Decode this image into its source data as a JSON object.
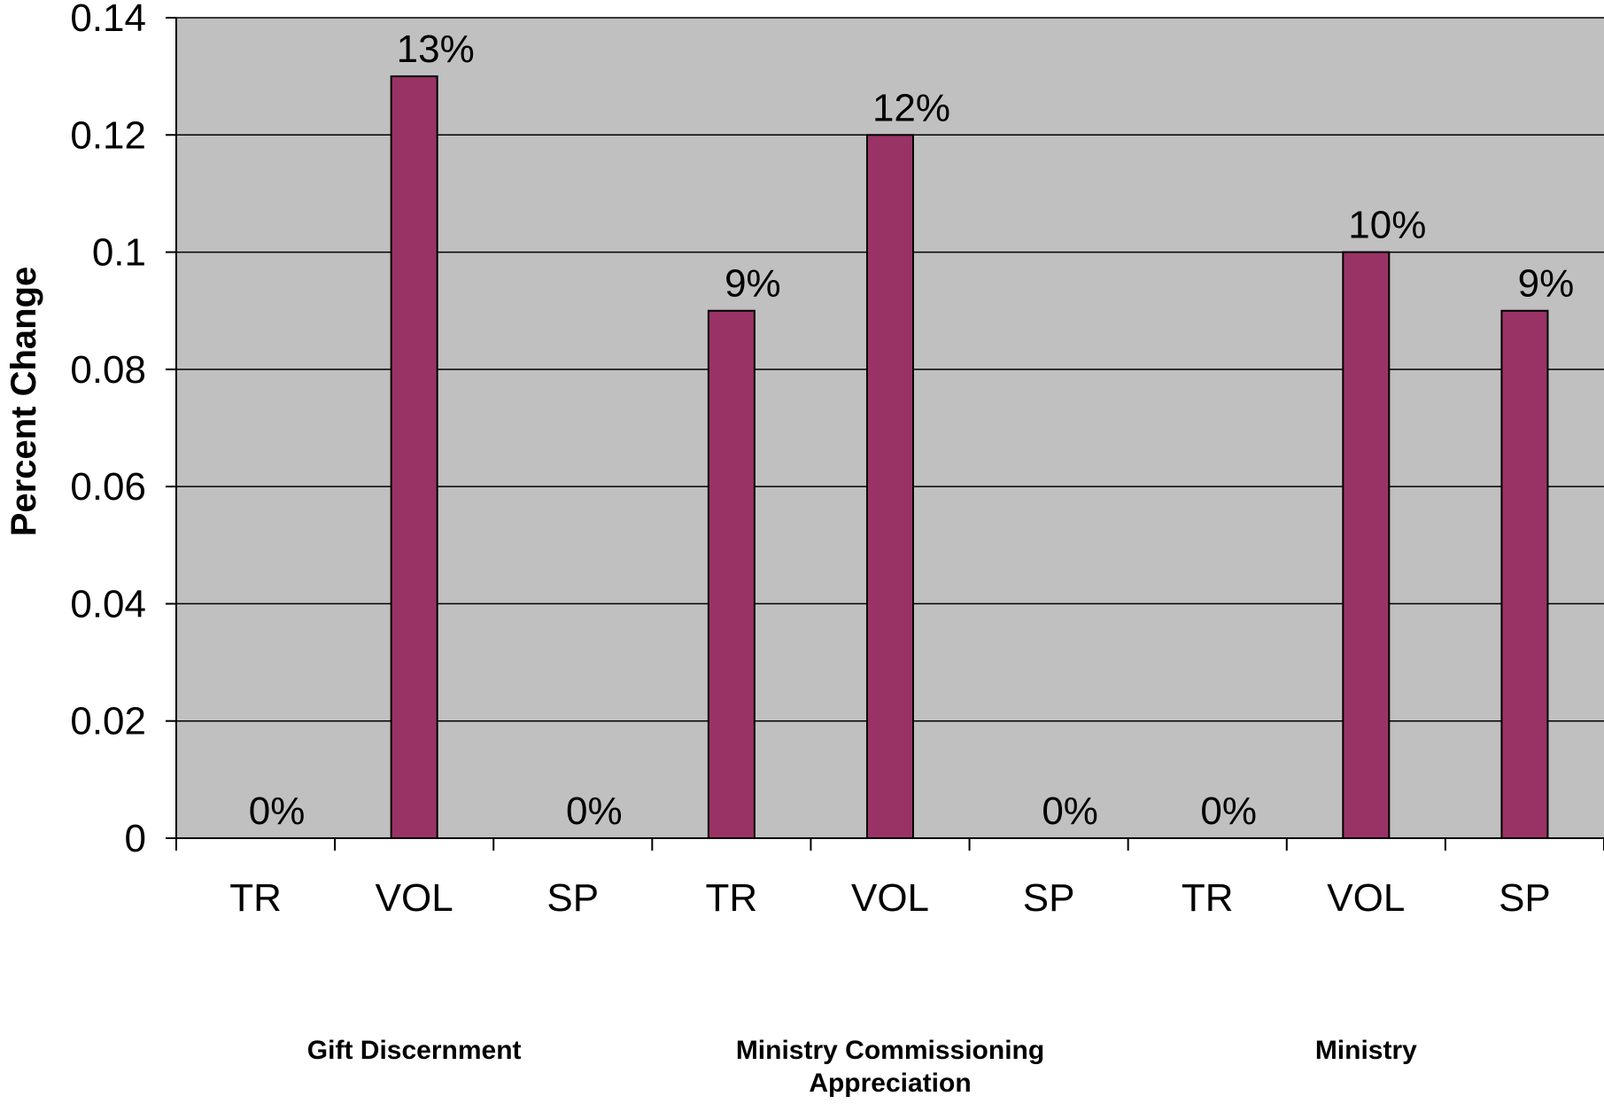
{
  "chart_data": {
    "type": "bar",
    "title": "",
    "xlabel": "",
    "ylabel": "Percent Change",
    "ylim": [
      0,
      0.14
    ],
    "yticks": [
      "0",
      "0.02",
      "0.04",
      "0.06",
      "0.08",
      "0.1",
      "0.12",
      "0.14"
    ],
    "ytick_values": [
      0,
      0.02,
      0.04,
      0.06,
      0.08,
      0.1,
      0.12,
      0.14
    ],
    "grid": true,
    "legend": "none",
    "categories": [
      "TR",
      "VOL",
      "SP",
      "TR",
      "VOL",
      "SP",
      "TR",
      "VOL",
      "SP"
    ],
    "values": [
      0,
      0.13,
      0,
      0.09,
      0.12,
      0,
      0,
      0.1,
      0.09
    ],
    "data_labels": [
      "0%",
      "13%",
      "0%",
      "9%",
      "12%",
      "0%",
      "0%",
      "10%",
      "9%"
    ],
    "groups": [
      {
        "label_lines": [
          "Gift Discernment"
        ]
      },
      {
        "label_lines": [
          "Ministry Commissioning",
          "Appreciation"
        ]
      },
      {
        "label_lines": [
          "Ministry"
        ]
      }
    ],
    "colors": {
      "bar": "#993366",
      "plot_background": "#c0c0c0",
      "gridline": "#000000"
    }
  }
}
